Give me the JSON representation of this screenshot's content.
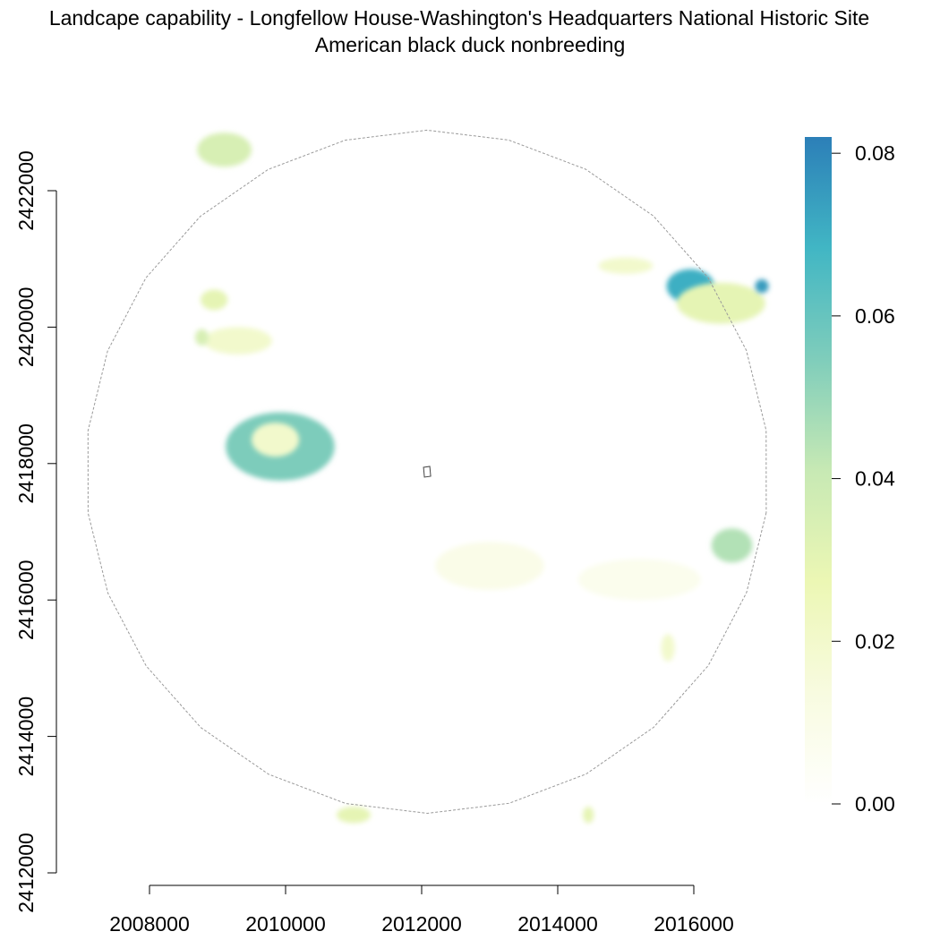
{
  "title": "Landcape capability - Longfellow House-Washington's Headquarters National Historic Site",
  "subtitle": "American black duck nonbreeding",
  "chart_data": {
    "type": "heatmap",
    "x_axis": {
      "range": [
        2007000,
        2017000
      ],
      "ticks": [
        2008000,
        2010000,
        2012000,
        2014000,
        2016000
      ],
      "tick_labels": [
        "2008000",
        "2010000",
        "2012000",
        "2014000",
        "2016000"
      ]
    },
    "y_axis": {
      "range": [
        2412000,
        2422000
      ],
      "ticks": [
        2412000,
        2414000,
        2416000,
        2418000,
        2420000,
        2422000
      ],
      "tick_labels": [
        "2412000",
        "2414000",
        "2416000",
        "2418000",
        "2420000",
        "2422000"
      ]
    },
    "colorbar": {
      "range": [
        0,
        0.082
      ],
      "ticks": [
        0,
        0.02,
        0.04,
        0.06,
        0.08
      ],
      "tick_labels": [
        "0.00",
        "0.02",
        "0.04",
        "0.06",
        "0.08"
      ],
      "colors": [
        "#ffffff",
        "#f8fbe0",
        "#ecf7b4",
        "#c7e9b4",
        "#7fcdbb",
        "#41b6c4",
        "#2c7fb8"
      ]
    },
    "site_outline_center": [
      2012080,
      2417880
    ],
    "buffer_boundary": "dashed-gray",
    "patches": [
      {
        "x": 2009920,
        "y": 2418250,
        "rx": 800,
        "ry": 500,
        "value": 0.055
      },
      {
        "x": 2009850,
        "y": 2418350,
        "rx": 350,
        "ry": 250,
        "value": 0.02
      },
      {
        "x": 2015950,
        "y": 2420600,
        "rx": 350,
        "ry": 250,
        "value": 0.07
      },
      {
        "x": 2016400,
        "y": 2420350,
        "rx": 650,
        "ry": 300,
        "value": 0.03
      },
      {
        "x": 2016560,
        "y": 2416800,
        "rx": 300,
        "ry": 250,
        "value": 0.045
      },
      {
        "x": 2009100,
        "y": 2422600,
        "rx": 400,
        "ry": 250,
        "value": 0.035
      },
      {
        "x": 2008950,
        "y": 2420400,
        "rx": 200,
        "ry": 150,
        "value": 0.03
      },
      {
        "x": 2009300,
        "y": 2419800,
        "rx": 500,
        "ry": 200,
        "value": 0.02
      },
      {
        "x": 2008770,
        "y": 2419850,
        "rx": 100,
        "ry": 120,
        "value": 0.035
      },
      {
        "x": 2011000,
        "y": 2412850,
        "rx": 250,
        "ry": 120,
        "value": 0.03
      },
      {
        "x": 2014450,
        "y": 2412850,
        "rx": 80,
        "ry": 120,
        "value": 0.03
      },
      {
        "x": 2015620,
        "y": 2415300,
        "rx": 100,
        "ry": 200,
        "value": 0.02
      },
      {
        "x": 2015000,
        "y": 2420900,
        "rx": 400,
        "ry": 120,
        "value": 0.02
      },
      {
        "x": 2013000,
        "y": 2416500,
        "rx": 800,
        "ry": 350,
        "value": 0.01
      },
      {
        "x": 2015200,
        "y": 2416300,
        "rx": 900,
        "ry": 300,
        "value": 0.008
      },
      {
        "x": 2017000,
        "y": 2420600,
        "rx": 100,
        "ry": 100,
        "value": 0.075
      }
    ]
  }
}
